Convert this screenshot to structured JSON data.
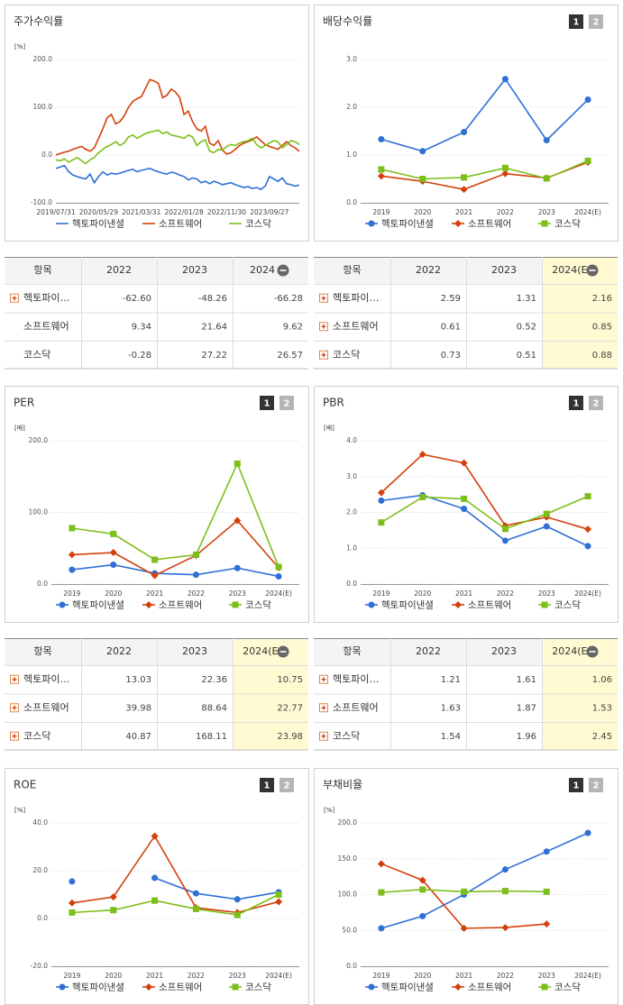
{
  "chart_data": [
    {
      "type": "line",
      "title": "주가수익률",
      "unit": "[%]",
      "categories": [
        "2019/07/31",
        null,
        null,
        null,
        null,
        null,
        null,
        null,
        null,
        null,
        "2020/05/29",
        null,
        null,
        null,
        null,
        null,
        null,
        null,
        null,
        null,
        "2021/03/31",
        null,
        null,
        null,
        null,
        null,
        null,
        null,
        null,
        null,
        "2022/01/28",
        null,
        null,
        null,
        null,
        null,
        null,
        null,
        null,
        null,
        "2022/11/30",
        null,
        null,
        null,
        null,
        null,
        null,
        null,
        null,
        null,
        "2023/09/27",
        null,
        null,
        null,
        null,
        null,
        null,
        null
      ],
      "series": [
        {
          "name": "헥토파이낸셜",
          "color": "#2f6fd6",
          "marker": "none",
          "values": [
            -28,
            -25,
            -22,
            -35,
            -42,
            -45,
            -48,
            -50,
            -40,
            -58,
            -45,
            -35,
            -42,
            -38,
            -40,
            -38,
            -35,
            -32,
            -30,
            -35,
            -32,
            -30,
            -28,
            -32,
            -35,
            -38,
            -40,
            -36,
            -38,
            -42,
            -45,
            -52,
            -48,
            -50,
            -58,
            -55,
            -60,
            -55,
            -58,
            -62,
            -60,
            -58,
            -62,
            -65,
            -68,
            -66,
            -70,
            -68,
            -72,
            -65,
            -45,
            -50,
            -55,
            -48,
            -60,
            -62,
            -65,
            -63
          ]
        },
        {
          "name": "소프트웨어",
          "color": "#d4400c",
          "marker": "none",
          "values": [
            0,
            3,
            6,
            8,
            12,
            15,
            18,
            12,
            8,
            15,
            35,
            55,
            78,
            85,
            65,
            70,
            82,
            100,
            112,
            118,
            122,
            140,
            158,
            155,
            150,
            120,
            125,
            138,
            132,
            120,
            85,
            92,
            70,
            55,
            50,
            60,
            25,
            20,
            30,
            10,
            2,
            5,
            12,
            20,
            25,
            28,
            32,
            38,
            30,
            22,
            18,
            15,
            12,
            20,
            28,
            20,
            15,
            8
          ]
        },
        {
          "name": "코스닥",
          "color": "#7cbf1a",
          "marker": "none",
          "values": [
            -10,
            -12,
            -8,
            -15,
            -10,
            -5,
            -12,
            -18,
            -10,
            -5,
            5,
            12,
            18,
            22,
            28,
            20,
            25,
            38,
            42,
            35,
            40,
            45,
            48,
            50,
            52,
            45,
            48,
            42,
            40,
            38,
            35,
            42,
            38,
            20,
            28,
            32,
            8,
            5,
            12,
            10,
            18,
            22,
            20,
            25,
            28,
            30,
            35,
            22,
            15,
            20,
            25,
            30,
            28,
            15,
            22,
            30,
            28,
            22
          ]
        }
      ],
      "ylim": [
        -100,
        200
      ],
      "yticks": [
        {
          "value": -100,
          "label": "-100.0"
        },
        {
          "value": 0,
          "label": "0.0"
        },
        {
          "value": 100,
          "label": "100.0"
        },
        {
          "value": 200,
          "label": "200.0"
        }
      ],
      "grid": true
    },
    {
      "type": "line",
      "title": "배당수익률",
      "unit": "",
      "pages": [
        "1",
        "2"
      ],
      "categories": [
        "2019",
        "2020",
        "2021",
        "2022",
        "2023",
        "2024(E)"
      ],
      "series": [
        {
          "name": "헥토파이낸셜",
          "color": "#2f6fd6",
          "marker": "circle",
          "values": [
            1.33,
            1.08,
            1.48,
            2.59,
            1.31,
            2.16
          ]
        },
        {
          "name": "소프트웨어",
          "color": "#d4400c",
          "marker": "diamond",
          "values": [
            0.56,
            0.45,
            0.28,
            0.61,
            0.52,
            0.85
          ]
        },
        {
          "name": "코스닥",
          "color": "#7cbf1a",
          "marker": "square",
          "values": [
            0.7,
            0.5,
            0.53,
            0.73,
            0.51,
            0.88
          ]
        }
      ],
      "ylim": [
        0,
        3
      ],
      "yticks": [
        {
          "value": 0,
          "label": "0.0"
        },
        {
          "value": 1,
          "label": "1.0"
        },
        {
          "value": 2,
          "label": "2.0"
        },
        {
          "value": 3,
          "label": "3.0"
        }
      ],
      "grid": true
    },
    {
      "type": "line",
      "title": "PER",
      "unit": "[배]",
      "pages": [
        "1",
        "2"
      ],
      "categories": [
        "2019",
        "2020",
        "2021",
        "2022",
        "2023",
        "2024(E)"
      ],
      "series": [
        {
          "name": "헥토파이낸셜",
          "color": "#2f6fd6",
          "marker": "circle",
          "values": [
            20,
            27,
            15,
            13.03,
            22.36,
            10.75
          ]
        },
        {
          "name": "소프트웨어",
          "color": "#d4400c",
          "marker": "diamond",
          "values": [
            41,
            44,
            12,
            39.98,
            88.64,
            22.77
          ]
        },
        {
          "name": "코스닥",
          "color": "#7cbf1a",
          "marker": "square",
          "values": [
            78,
            70,
            34,
            40.87,
            168.11,
            23.98
          ]
        }
      ],
      "ylim": [
        0,
        200
      ],
      "yticks": [
        {
          "value": 0,
          "label": "0.0"
        },
        {
          "value": 100,
          "label": "100.0"
        },
        {
          "value": 200,
          "label": "200.0"
        }
      ],
      "grid": true
    },
    {
      "type": "line",
      "title": "PBR",
      "unit": "[배]",
      "pages": [
        "1",
        "2"
      ],
      "categories": [
        "2019",
        "2020",
        "2021",
        "2022",
        "2023",
        "2024(E)"
      ],
      "series": [
        {
          "name": "헥토파이낸셜",
          "color": "#2f6fd6",
          "marker": "circle",
          "values": [
            2.33,
            2.48,
            2.1,
            1.21,
            1.61,
            1.06
          ]
        },
        {
          "name": "소프트웨어",
          "color": "#d4400c",
          "marker": "diamond",
          "values": [
            2.55,
            3.62,
            3.38,
            1.63,
            1.87,
            1.53
          ]
        },
        {
          "name": "코스닥",
          "color": "#7cbf1a",
          "marker": "square",
          "values": [
            1.72,
            2.43,
            2.38,
            1.54,
            1.96,
            2.45
          ]
        }
      ],
      "ylim": [
        0,
        4
      ],
      "yticks": [
        {
          "value": 0,
          "label": "0.0"
        },
        {
          "value": 1,
          "label": "1.0"
        },
        {
          "value": 2,
          "label": "2.0"
        },
        {
          "value": 3,
          "label": "3.0"
        },
        {
          "value": 4,
          "label": "4.0"
        }
      ],
      "grid": true
    },
    {
      "type": "line",
      "title": "ROE",
      "unit": "[%]",
      "pages": [
        "1",
        "2"
      ],
      "categories": [
        "2019",
        "2020",
        "2021",
        "2022",
        "2023",
        "2024(E)"
      ],
      "series": [
        {
          "name": "헥토파이낸셜",
          "color": "#2f6fd6",
          "marker": "circle",
          "values": [
            15.5,
            null,
            17,
            10.5,
            8,
            11
          ]
        },
        {
          "name": "소프트웨어",
          "color": "#d4400c",
          "marker": "diamond",
          "values": [
            6.5,
            9,
            34.5,
            4.5,
            2.5,
            7
          ]
        },
        {
          "name": "코스닥",
          "color": "#7cbf1a",
          "marker": "square",
          "values": [
            2.5,
            3.5,
            7.5,
            4,
            1.5,
            10
          ]
        }
      ],
      "ylim": [
        -20,
        40
      ],
      "yticks": [
        {
          "value": -20,
          "label": "-20.0"
        },
        {
          "value": 0,
          "label": "0.0"
        },
        {
          "value": 20,
          "label": "20.0"
        },
        {
          "value": 40,
          "label": "40.0"
        }
      ],
      "grid": true
    },
    {
      "type": "line",
      "title": "부채비율",
      "unit": "[%]",
      "pages": [
        "1",
        "2"
      ],
      "categories": [
        "2019",
        "2020",
        "2021",
        "2022",
        "2023",
        "2024(E)"
      ],
      "series": [
        {
          "name": "헥토파이낸셜",
          "color": "#2f6fd6",
          "marker": "circle",
          "values": [
            53,
            70,
            100,
            135,
            160,
            186
          ]
        },
        {
          "name": "소프트웨어",
          "color": "#d4400c",
          "marker": "diamond",
          "values": [
            143,
            120,
            53,
            54,
            59,
            null
          ]
        },
        {
          "name": "코스닥",
          "color": "#7cbf1a",
          "marker": "square",
          "values": [
            103,
            107,
            104,
            105,
            104,
            null
          ]
        }
      ],
      "ylim": [
        0,
        200
      ],
      "yticks": [
        {
          "value": 0,
          "label": "0.0"
        },
        {
          "value": 50,
          "label": "50.0"
        },
        {
          "value": 100,
          "label": "100.0"
        },
        {
          "value": 150,
          "label": "150.0"
        },
        {
          "value": 200,
          "label": "200.0"
        }
      ],
      "grid": true
    }
  ],
  "tables": [
    {
      "headers": [
        "항목",
        "2022",
        "2023",
        "2024"
      ],
      "highlight_last": false,
      "row_icons": [
        true,
        false,
        false
      ],
      "rows": [
        {
          "name": "헥토파이…",
          "values": [
            "-62.60",
            "-48.26",
            "-66.28"
          ]
        },
        {
          "name": "소프트웨어",
          "values": [
            "9.34",
            "21.64",
            "9.62"
          ]
        },
        {
          "name": "코스닥",
          "values": [
            "-0.28",
            "27.22",
            "26.57"
          ]
        }
      ]
    },
    {
      "headers": [
        "항목",
        "2022",
        "2023",
        "2024(E)"
      ],
      "highlight_last": true,
      "row_icons": [
        true,
        true,
        true
      ],
      "rows": [
        {
          "name": "헥토파이…",
          "values": [
            "2.59",
            "1.31",
            "2.16"
          ]
        },
        {
          "name": "소프트웨어",
          "values": [
            "0.61",
            "0.52",
            "0.85"
          ]
        },
        {
          "name": "코스닥",
          "values": [
            "0.73",
            "0.51",
            "0.88"
          ]
        }
      ]
    },
    {
      "headers": [
        "항목",
        "2022",
        "2023",
        "2024(E)"
      ],
      "highlight_last": true,
      "row_icons": [
        true,
        true,
        true
      ],
      "rows": [
        {
          "name": "헥토파이…",
          "values": [
            "13.03",
            "22.36",
            "10.75"
          ]
        },
        {
          "name": "소프트웨어",
          "values": [
            "39.98",
            "88.64",
            "22.77"
          ]
        },
        {
          "name": "코스닥",
          "values": [
            "40.87",
            "168.11",
            "23.98"
          ]
        }
      ]
    },
    {
      "headers": [
        "항목",
        "2022",
        "2023",
        "2024(E)"
      ],
      "highlight_last": true,
      "row_icons": [
        true,
        true,
        true
      ],
      "rows": [
        {
          "name": "헥토파이…",
          "values": [
            "1.21",
            "1.61",
            "1.06"
          ]
        },
        {
          "name": "소프트웨어",
          "values": [
            "1.63",
            "1.87",
            "1.53"
          ]
        },
        {
          "name": "코스닥",
          "values": [
            "1.54",
            "1.96",
            "2.45"
          ]
        }
      ]
    }
  ]
}
